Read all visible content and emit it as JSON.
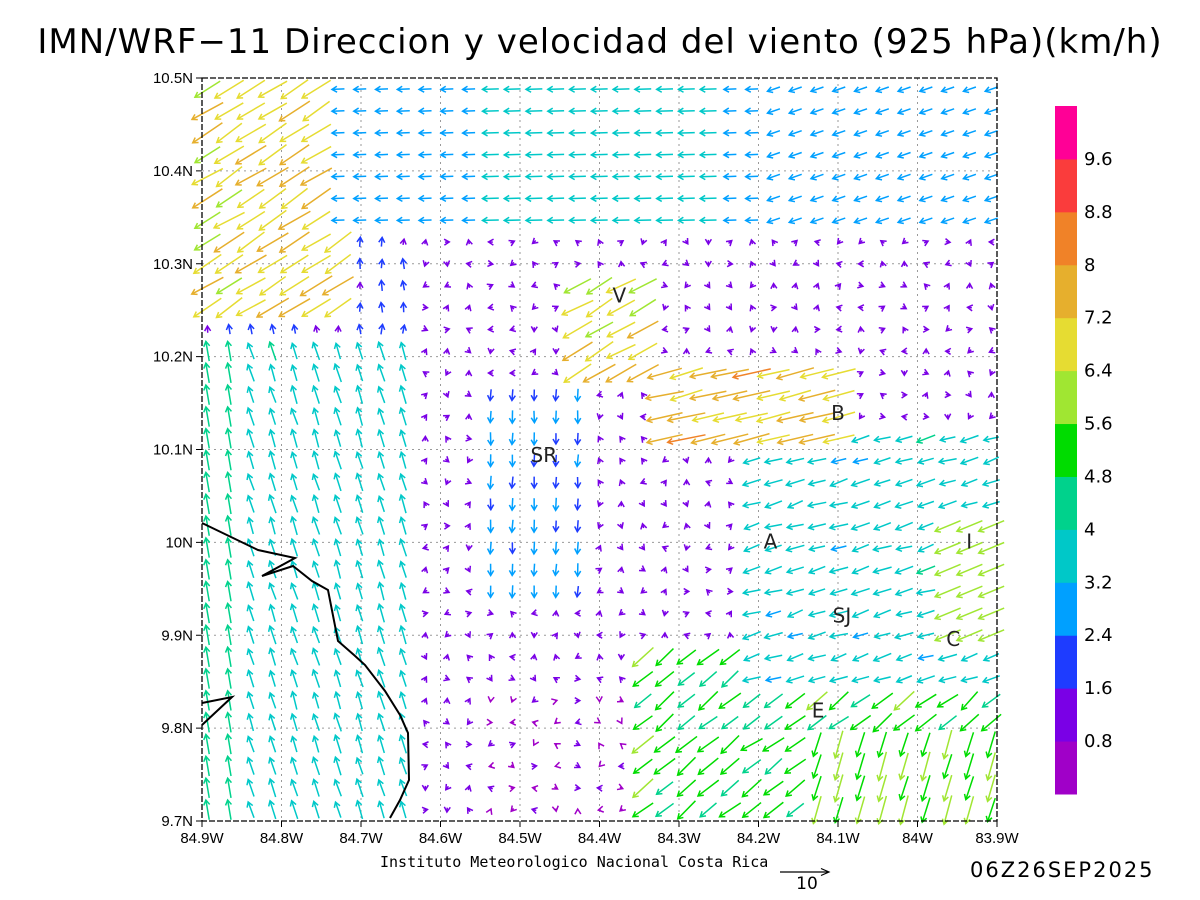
{
  "title": "IMN/WRF−11 Direccion y velocidad del viento (925 hPa)(km/h)",
  "credit": "Instituto Meteorologico Nacional Costa Rica",
  "valid_time": "06Z26SEP2025",
  "reference_vector": {
    "label": "10",
    "value": 10
  },
  "map": {
    "lon_range": [
      -84.9,
      -83.9
    ],
    "lat_range": [
      9.7,
      10.5
    ],
    "grid": "dotted",
    "x_tick_labels": [
      "84.9W",
      "84.8W",
      "84.7W",
      "84.6W",
      "84.5W",
      "84.4W",
      "84.3W",
      "84.2W",
      "84.1W",
      "84W",
      "83.9W"
    ],
    "y_tick_labels": [
      "9.7N",
      "9.8N",
      "9.9N",
      "10N",
      "10.1N",
      "10.2N",
      "10.3N",
      "10.4N",
      "10.5N"
    ],
    "station_labels": [
      {
        "text": "V",
        "lon": -84.375,
        "lat": 10.265
      },
      {
        "text": "B",
        "lon": -84.1,
        "lat": 10.138
      },
      {
        "text": "SR",
        "lon": -84.47,
        "lat": 10.093
      },
      {
        "text": "A",
        "lon": -84.185,
        "lat": 10.0
      },
      {
        "text": "I",
        "lon": -83.935,
        "lat": 10.0
      },
      {
        "text": "SJ",
        "lon": -84.095,
        "lat": 9.92
      },
      {
        "text": "C",
        "lon": -83.955,
        "lat": 9.895
      },
      {
        "text": "E",
        "lon": -84.125,
        "lat": 9.818
      }
    ],
    "coastline_color": "#000000"
  },
  "colorbar": {
    "colors": [
      "#a000c8",
      "#7a00e6",
      "#1e3cff",
      "#00a0ff",
      "#00c8c8",
      "#00d28c",
      "#00dc00",
      "#a0e632",
      "#e6dc32",
      "#e6af2d",
      "#f08228",
      "#fa3c3c",
      "#ff0096"
    ],
    "labels": [
      "0.8",
      "1.6",
      "2.4",
      "3.2",
      "4",
      "4.8",
      "5.6",
      "6.4",
      "7.2",
      "8",
      "8.8",
      "9.6"
    ]
  },
  "chart_data": {
    "type": "vector-field",
    "variable": "Direccion y velocidad del viento (925 hPa)",
    "units": "km/h",
    "speed_bins": [
      0.8,
      1.6,
      2.4,
      3.2,
      4,
      4.8,
      5.6,
      6.4,
      7.2,
      8,
      8.8,
      9.6
    ],
    "regions": [
      {
        "name": "northern strip",
        "lat": [
          10.35,
          10.5
        ],
        "lon": [
          -84.73,
          -83.9
        ],
        "direction_from": "E",
        "speed": 2.8
      },
      {
        "name": "northwest corner",
        "lat": [
          10.25,
          10.4
        ],
        "lon": [
          -84.9,
          -84.73
        ],
        "direction_from": "NE",
        "speed": 6.5
      },
      {
        "name": "Pacific slope west",
        "lat": [
          9.7,
          10.2
        ],
        "lon": [
          -84.9,
          -84.6
        ],
        "direction_from": "SE",
        "speed": 3.6
      },
      {
        "name": "central valley calm",
        "lat": [
          9.8,
          10.1
        ],
        "lon": [
          -84.6,
          -84.25
        ],
        "direction_from": "variable",
        "speed": 1.0
      },
      {
        "name": "SR corridor",
        "lat": [
          9.95,
          10.15
        ],
        "lon": [
          -84.55,
          -84.4
        ],
        "direction_from": "N",
        "speed": 2.3
      },
      {
        "name": "V jet",
        "lat": [
          10.18,
          10.28
        ],
        "lon": [
          -84.45,
          -84.33
        ],
        "direction_from": "NE",
        "speed": 6.6
      },
      {
        "name": "B jet",
        "lat": [
          10.1,
          10.18
        ],
        "lon": [
          -84.3,
          -84.1
        ],
        "direction_from": "ENE",
        "speed": 7.2
      },
      {
        "name": "eastern flow",
        "lat": [
          9.85,
          10.1
        ],
        "lon": [
          -84.2,
          -83.9
        ],
        "direction_from": "E",
        "speed": 3.5
      },
      {
        "name": "southeast sector",
        "lat": [
          9.7,
          9.9
        ],
        "lon": [
          -84.35,
          -83.9
        ],
        "direction_from": "NE",
        "speed": 4.8
      }
    ]
  }
}
